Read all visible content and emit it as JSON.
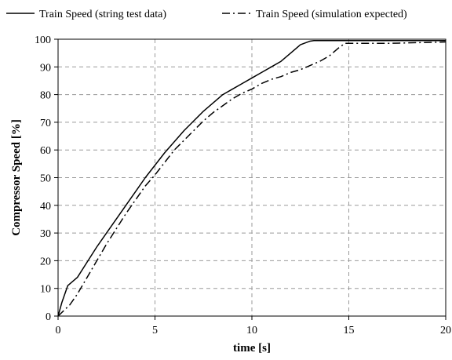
{
  "chart_data": {
    "type": "line",
    "xlabel": "time [s]",
    "ylabel": "Compressor Speed [%]",
    "xlim": [
      0,
      20
    ],
    "ylim": [
      0,
      100
    ],
    "xticks": [
      0,
      5,
      10,
      15,
      20
    ],
    "yticks": [
      0,
      10,
      20,
      30,
      40,
      50,
      60,
      70,
      80,
      90,
      100
    ],
    "grid": "dashed",
    "legend_position": "top",
    "series": [
      {
        "name": "Train Speed (string test data)",
        "line_style": "solid",
        "color": "#000000",
        "x": [
          0,
          0.2,
          0.5,
          1,
          1.5,
          2,
          2.5,
          3,
          3.5,
          4,
          4.5,
          5,
          5.5,
          6,
          6.5,
          7,
          7.5,
          8,
          8.5,
          9,
          9.5,
          10,
          10.5,
          11,
          11.5,
          12,
          12.5,
          13,
          13.2,
          13.5,
          14,
          15,
          20
        ],
        "y": [
          0,
          5,
          11,
          14,
          19.5,
          25,
          30,
          35,
          40,
          45,
          50,
          54.5,
          59,
          63,
          67,
          70.5,
          74,
          77,
          80,
          82,
          84,
          86,
          88,
          90,
          92,
          95,
          98,
          99.3,
          99.5,
          99.5,
          99.5,
          99.5,
          99.5
        ]
      },
      {
        "name": "Train Speed (simulation expected)",
        "line_style": "dash-dot",
        "color": "#000000",
        "x": [
          0,
          0.3,
          0.6,
          1,
          1.5,
          2,
          2.5,
          3,
          3.5,
          4,
          4.5,
          5,
          5.5,
          6,
          6.5,
          7,
          7.5,
          8,
          8.5,
          9,
          9.5,
          10,
          10.5,
          11,
          11.5,
          12,
          12.5,
          13,
          13.5,
          14,
          14.5,
          14.8,
          15,
          17,
          20
        ],
        "y": [
          0,
          2,
          4,
          8,
          14,
          20,
          26,
          31.5,
          37,
          42,
          47,
          51,
          55.5,
          60,
          63.5,
          67,
          70.5,
          73.5,
          76,
          78.5,
          80.5,
          82,
          84,
          85.5,
          86.5,
          88,
          89,
          90.5,
          92,
          94,
          97,
          98.5,
          98.5,
          98.5,
          99
        ]
      }
    ]
  }
}
